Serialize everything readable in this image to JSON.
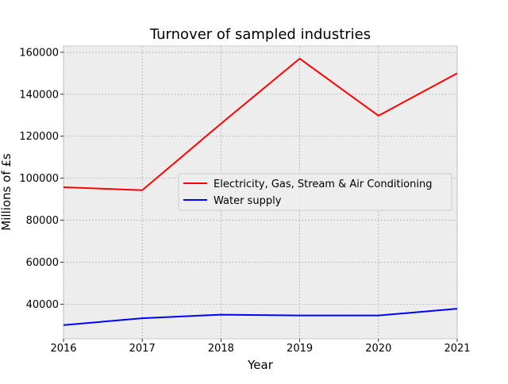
{
  "chart_data": {
    "type": "line",
    "title": "Turnover of sampled industries",
    "xlabel": "Year",
    "ylabel": "Millions of £s",
    "x": [
      2016,
      2017,
      2018,
      2019,
      2020,
      2021
    ],
    "xlim": [
      2016,
      2021
    ],
    "ylim": [
      23500,
      163000
    ],
    "xticks": [
      "2016",
      "2017",
      "2018",
      "2019",
      "2020",
      "2021"
    ],
    "yticks": [
      "40000",
      "60000",
      "80000",
      "100000",
      "120000",
      "140000",
      "160000"
    ],
    "grid": true,
    "legend_position": "center-right",
    "series": [
      {
        "name": "Electricity, Gas, Stream & Air Conditioning",
        "color": "#ff0000",
        "values": [
          95700,
          94300,
          126000,
          157000,
          129800,
          150000
        ]
      },
      {
        "name": "Water supply",
        "color": "#0000ff",
        "values": [
          30000,
          33300,
          35000,
          34600,
          34600,
          37800
        ]
      }
    ]
  }
}
